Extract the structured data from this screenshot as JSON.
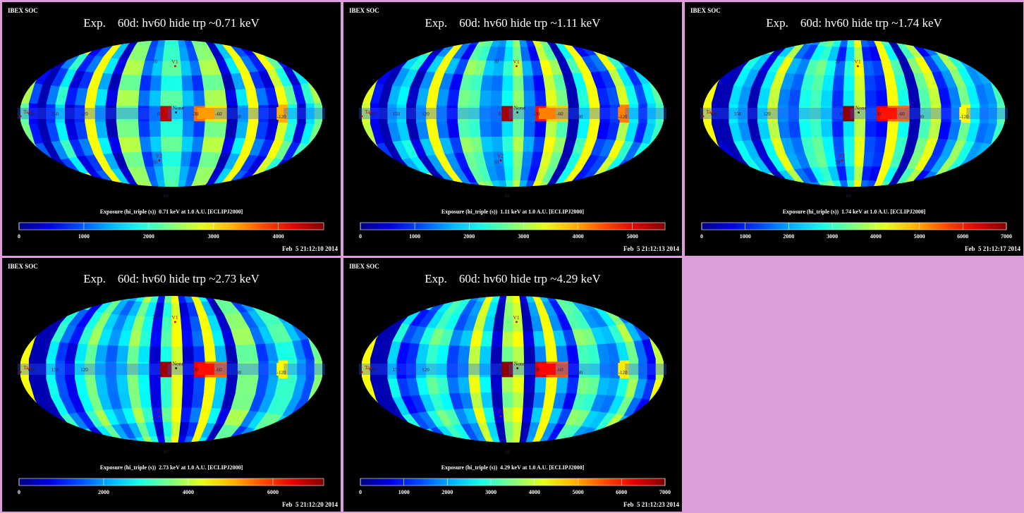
{
  "page": {
    "background": "#dd9fdb"
  },
  "chart_data": [
    {
      "type": "heatmap",
      "org": "IBEX SOC",
      "title": "Exp.    60d: hv60 hide trp ~0.71 keV",
      "colorbar_label": "Exposure (hi_triple (s))  0.71 keV at 1.0 A.U. [ECLIPJ2000]",
      "timestamp": "Feb  5 21:12:10 2014",
      "clim": [
        0,
        4700
      ],
      "colorbar_ticks": [
        0,
        1000,
        2000,
        3000,
        4000
      ],
      "hot_region": {
        "lon_center": -40,
        "value": 3400
      },
      "hot_pixels": [
        {
          "lon": 8,
          "value": 4400
        },
        {
          "lon": -28,
          "value": 3600
        },
        {
          "lon": -122,
          "value": 3300
        }
      ],
      "markers": [
        "V1",
        "None",
        "V2",
        "Tail"
      ],
      "grid_labels": [
        "60",
        "30",
        "0",
        "-30",
        "-60",
        "-90",
        "-120",
        "150",
        "120"
      ]
    },
    {
      "type": "heatmap",
      "org": "IBEX SOC",
      "title": "Exp.    60d: hv60 hide trp ~1.11 keV",
      "colorbar_label": "Exposure (hi_triple (s))  1.11 keV at 1.0 A.U. [ECLIPJ2000]",
      "timestamp": "Feb  5 21:12:13 2014",
      "clim": [
        0,
        5600
      ],
      "colorbar_ticks": [
        0,
        1000,
        2000,
        3000,
        4000,
        5000
      ],
      "hot_region": {
        "lon_center": -40,
        "value": 4200
      },
      "hot_pixels": [
        {
          "lon": 8,
          "value": 5400
        },
        {
          "lon": -28,
          "value": 4800
        },
        {
          "lon": -122,
          "value": 4200
        }
      ],
      "markers": [
        "V1",
        "None",
        "V2",
        "Tail"
      ],
      "grid_labels": [
        "60",
        "30",
        "0",
        "-30",
        "-60",
        "-90",
        "-120",
        "150",
        "120"
      ]
    },
    {
      "type": "heatmap",
      "org": "IBEX SOC",
      "title": "Exp.    60d: hv60 hide trp ~1.74 keV",
      "colorbar_label": "Exposure (hi_triple (s))  1.74 keV at 1.0 A.U. [ECLIPJ2000]",
      "timestamp": "Feb  5 21:12:17 2014",
      "clim": [
        0,
        7000
      ],
      "colorbar_ticks": [
        0,
        1000,
        2000,
        3000,
        4000,
        5000,
        6000,
        7000
      ],
      "hot_region": {
        "lon_center": -40,
        "value": 6000
      },
      "hot_pixels": [
        {
          "lon": 8,
          "value": 6900
        },
        {
          "lon": -28,
          "value": 6200
        },
        {
          "lon": -122,
          "value": 4400
        }
      ],
      "markers": [
        "V1",
        "None",
        "V2",
        "Tail"
      ],
      "grid_labels": [
        "60",
        "30",
        "0",
        "-30",
        "-60",
        "-90",
        "-120",
        "150",
        "120"
      ]
    },
    {
      "type": "heatmap",
      "org": "IBEX SOC",
      "title": "Exp.    60d: hv60 hide trp ~2.73 keV",
      "colorbar_label": "Exposure (hi_triple (s))  2.73 keV at 1.0 A.U. [ECLIPJ2000]",
      "timestamp": "Feb  5 21:12:20 2014",
      "clim": [
        0,
        7200
      ],
      "colorbar_ticks": [
        0,
        2000,
        4000,
        6000
      ],
      "hot_region": {
        "lon_center": -40,
        "value": 6200
      },
      "hot_pixels": [
        {
          "lon": 8,
          "value": 7000
        },
        {
          "lon": -28,
          "value": 6400
        },
        {
          "lon": -122,
          "value": 4500
        }
      ],
      "markers": [
        "V1",
        "None",
        "V2",
        "Tail"
      ],
      "grid_labels": [
        "60",
        "30",
        "0",
        "-30",
        "-60",
        "-90",
        "-120",
        "150",
        "120"
      ]
    },
    {
      "type": "heatmap",
      "org": "IBEX SOC",
      "title": "Exp.    60d: hv60 hide trp ~4.29 keV",
      "colorbar_label": "Exposure (hi_triple (s))  4.29 keV at 1.0 A.U. [ECLIPJ2000]",
      "timestamp": "Feb  5 21:12:23 2014",
      "clim": [
        0,
        7000
      ],
      "colorbar_ticks": [
        0,
        1000,
        2000,
        3000,
        4000,
        5000,
        6000,
        7000
      ],
      "hot_region": {
        "lon_center": -40,
        "value": 6100
      },
      "hot_pixels": [
        {
          "lon": 8,
          "value": 6900
        },
        {
          "lon": -28,
          "value": 6300
        },
        {
          "lon": -122,
          "value": 4500
        }
      ],
      "markers": [
        "V1",
        "None",
        "V2",
        "Tail"
      ],
      "grid_labels": [
        "60",
        "30",
        "0",
        "-30",
        "-60",
        "-90",
        "-120",
        "150",
        "120"
      ]
    }
  ]
}
